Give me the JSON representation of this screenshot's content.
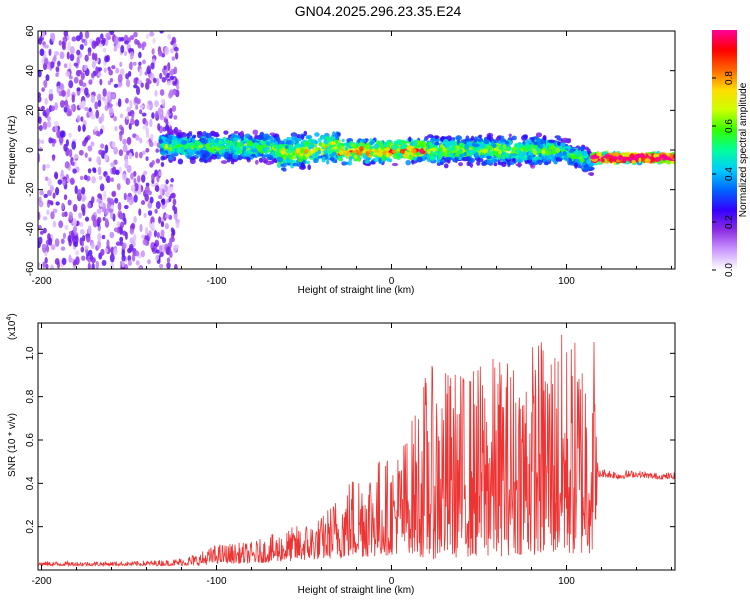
{
  "title": "GN04.2025.296.23.35.E24",
  "chart_data": [
    {
      "type": "heatmap",
      "panel": "spectrogram",
      "xlabel": "Height of straight line (km)",
      "ylabel": "Frequency (Hz)",
      "xlim": [
        -202,
        162
      ],
      "ylim": [
        -60,
        60
      ],
      "x_ticks": [
        -200,
        -100,
        0,
        100
      ],
      "y_ticks": [
        -60,
        -40,
        -20,
        0,
        20,
        40,
        60
      ],
      "description_bands": [
        {
          "from": -202,
          "to": -122,
          "kind": "diffuse noise",
          "freq_span": [
            -60,
            60
          ],
          "mean_amplitude": 0.12
        },
        {
          "from": -132,
          "to": -65,
          "kind": "signal band",
          "center_freq": [
            2,
            1
          ],
          "halfwidth": 6,
          "mean_amplitude": 0.42
        },
        {
          "from": -65,
          "to": -30,
          "kind": "signal band",
          "center_freq": [
            -2,
            2
          ],
          "halfwidth": 7,
          "mean_amplitude": 0.5
        },
        {
          "from": -30,
          "to": 20,
          "kind": "signal band",
          "center_freq": [
            -1,
            0
          ],
          "halfwidth": 5,
          "mean_amplitude": 0.6
        },
        {
          "from": 20,
          "to": 95,
          "kind": "signal band",
          "center_freq": [
            0,
            0
          ],
          "halfwidth": 6,
          "mean_amplitude": 0.45
        },
        {
          "from": 95,
          "to": 115,
          "kind": "signal band",
          "center_freq": [
            0,
            -6
          ],
          "halfwidth": 5,
          "mean_amplitude": 0.4
        },
        {
          "from": 115,
          "to": 162,
          "kind": "narrow tone",
          "center_freq": [
            -4,
            -4
          ],
          "halfwidth": 2,
          "mean_amplitude": 0.9
        }
      ]
    },
    {
      "type": "line",
      "panel": "snr",
      "xlabel": "Height of straight line (km)",
      "ylabel": "SNR (10 * v/v)",
      "y_multiplier_label": "(x10",
      "y_multiplier_exp": "4",
      "xlim": [
        -202,
        162
      ],
      "ylim": [
        0.0,
        1.14
      ],
      "x_ticks": [
        -200,
        -100,
        0,
        100
      ],
      "y_ticks": [
        0.2,
        0.4,
        0.6,
        0.8,
        1.0
      ],
      "color": "#ee3333",
      "envelope": {
        "x": [
          -202,
          -150,
          -125,
          -110,
          -100,
          -80,
          -60,
          -40,
          -20,
          -10,
          0,
          10,
          20,
          30,
          40,
          50,
          60,
          70,
          80,
          90,
          100,
          110,
          116,
          118,
          120,
          130,
          140,
          150,
          162
        ],
        "min": [
          0.02,
          0.02,
          0.02,
          0.02,
          0.03,
          0.03,
          0.04,
          0.05,
          0.06,
          0.06,
          0.07,
          0.08,
          0.05,
          0.05,
          0.06,
          0.06,
          0.06,
          0.07,
          0.07,
          0.07,
          0.07,
          0.07,
          0.08,
          0.42,
          0.43,
          0.42,
          0.43,
          0.42,
          0.42
        ],
        "max": [
          0.04,
          0.04,
          0.05,
          0.08,
          0.12,
          0.13,
          0.19,
          0.25,
          0.48,
          0.53,
          0.52,
          0.66,
          0.94,
          0.95,
          0.93,
          0.97,
          1.0,
          1.0,
          1.07,
          1.12,
          1.1,
          1.08,
          1.14,
          0.46,
          0.47,
          0.46,
          0.46,
          0.45,
          0.45
        ]
      }
    }
  ],
  "colorbar": {
    "label": "Normalized spectral amplitude",
    "ticks": [
      "0.0",
      "0.2",
      "0.4",
      "0.6",
      "0.8"
    ],
    "stops": [
      "#ffffff",
      "#cc99ff",
      "#8a2be2",
      "#3300ff",
      "#0066ff",
      "#00ccff",
      "#00ff99",
      "#33ff00",
      "#ccff00",
      "#ffdd00",
      "#ff6600",
      "#ff0000",
      "#ff0099"
    ]
  }
}
